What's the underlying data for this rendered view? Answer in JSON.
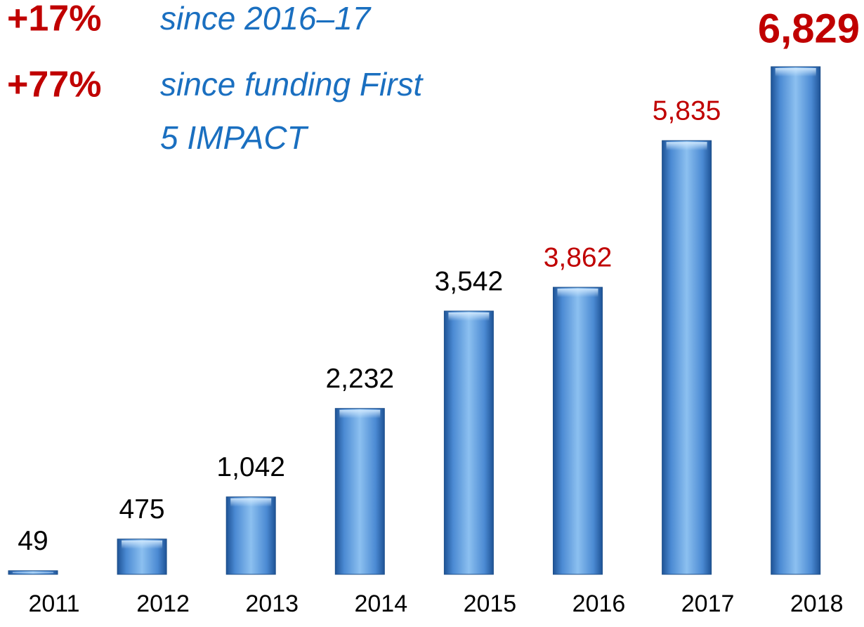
{
  "chart_data": {
    "type": "bar",
    "categories": [
      "2011",
      "2012",
      "2013",
      "2014",
      "2015",
      "2016",
      "2017",
      "2018"
    ],
    "values": [
      49,
      475,
      1042,
      2232,
      3542,
      3862,
      5835,
      6829
    ],
    "value_labels": [
      "49",
      "475",
      "1,042",
      "2,232",
      "3,542",
      "3,862",
      "5,835",
      "6,829"
    ],
    "value_label_colors": [
      "#000000",
      "#000000",
      "#000000",
      "#000000",
      "#000000",
      "#c00000",
      "#c00000",
      "#c00000"
    ],
    "color": "#4a8ad4",
    "annotations": [
      {
        "change": "+17%",
        "text": [
          "since 2016–17"
        ]
      },
      {
        "change": "+77%",
        "text": [
          "since funding First",
          "5 IMPACT"
        ]
      }
    ]
  }
}
